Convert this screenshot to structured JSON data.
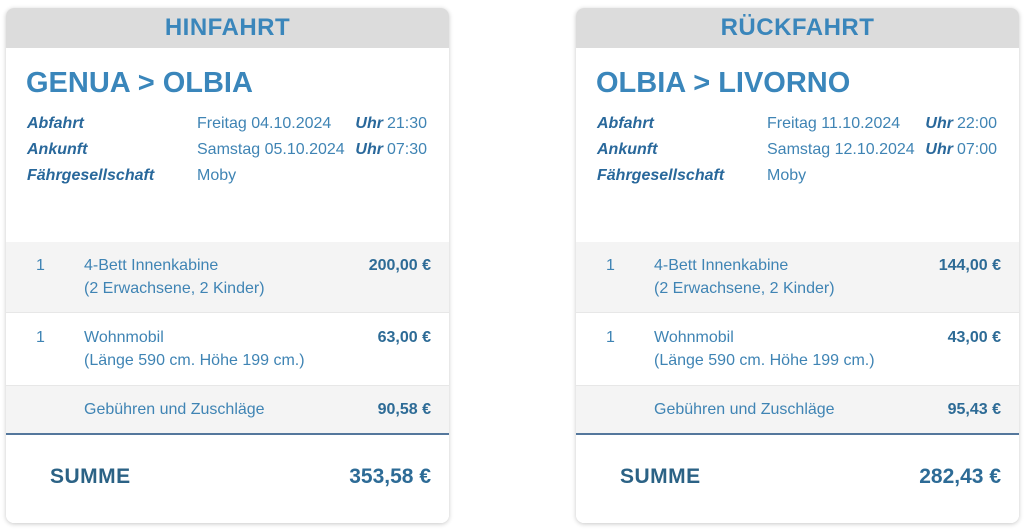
{
  "colors": {
    "accent": "#3a86bb",
    "dark_blue": "#29689b",
    "text_blue": "#3f84b4",
    "price_blue": "#2d6b96",
    "summe_blue": "#2b6285",
    "divider_blue": "#54779c",
    "header_bg": "#dcdcdc",
    "row_bg": "#f4f4f4"
  },
  "cards": [
    {
      "header": "HINFAHRT",
      "route": "GENUA > OLBIA",
      "info": [
        {
          "label": "Abfahrt",
          "value": "Freitag 04.10.2024",
          "time_label": "Uhr",
          "time": "21:30"
        },
        {
          "label": "Ankunft",
          "value": "Samstag 05.10.2024",
          "time_label": "Uhr",
          "time": "07:30"
        },
        {
          "label": "Fährgesellschaft",
          "value": "Moby",
          "time_label": "",
          "time": ""
        }
      ],
      "items": [
        {
          "qty": "1",
          "name": "4-Bett Innenkabine",
          "detail": "(2 Erwachsene, 2 Kinder)",
          "price": "200,00 €"
        },
        {
          "qty": "1",
          "name": "Wohnmobil",
          "detail": "(Länge 590 cm. Höhe 199 cm.)",
          "price": "63,00 €"
        },
        {
          "qty": "",
          "name": "Gebühren und Zuschläge",
          "detail": "",
          "price": "90,58 €"
        }
      ],
      "total_label": "SUMME",
      "total": "353,58 €"
    },
    {
      "header": "RÜCKFAHRT",
      "route": "OLBIA > LIVORNO",
      "info": [
        {
          "label": "Abfahrt",
          "value": "Freitag 11.10.2024",
          "time_label": "Uhr",
          "time": "22:00"
        },
        {
          "label": "Ankunft",
          "value": "Samstag 12.10.2024",
          "time_label": "Uhr",
          "time": "07:00"
        },
        {
          "label": "Fährgesellschaft",
          "value": "Moby",
          "time_label": "",
          "time": ""
        }
      ],
      "items": [
        {
          "qty": "1",
          "name": "4-Bett Innenkabine",
          "detail": "(2 Erwachsene, 2 Kinder)",
          "price": "144,00 €"
        },
        {
          "qty": "1",
          "name": "Wohnmobil",
          "detail": "(Länge 590 cm. Höhe 199 cm.)",
          "price": "43,00 €"
        },
        {
          "qty": "",
          "name": "Gebühren und Zuschläge",
          "detail": "",
          "price": "95,43 €"
        }
      ],
      "total_label": "SUMME",
      "total": "282,43 €"
    }
  ]
}
